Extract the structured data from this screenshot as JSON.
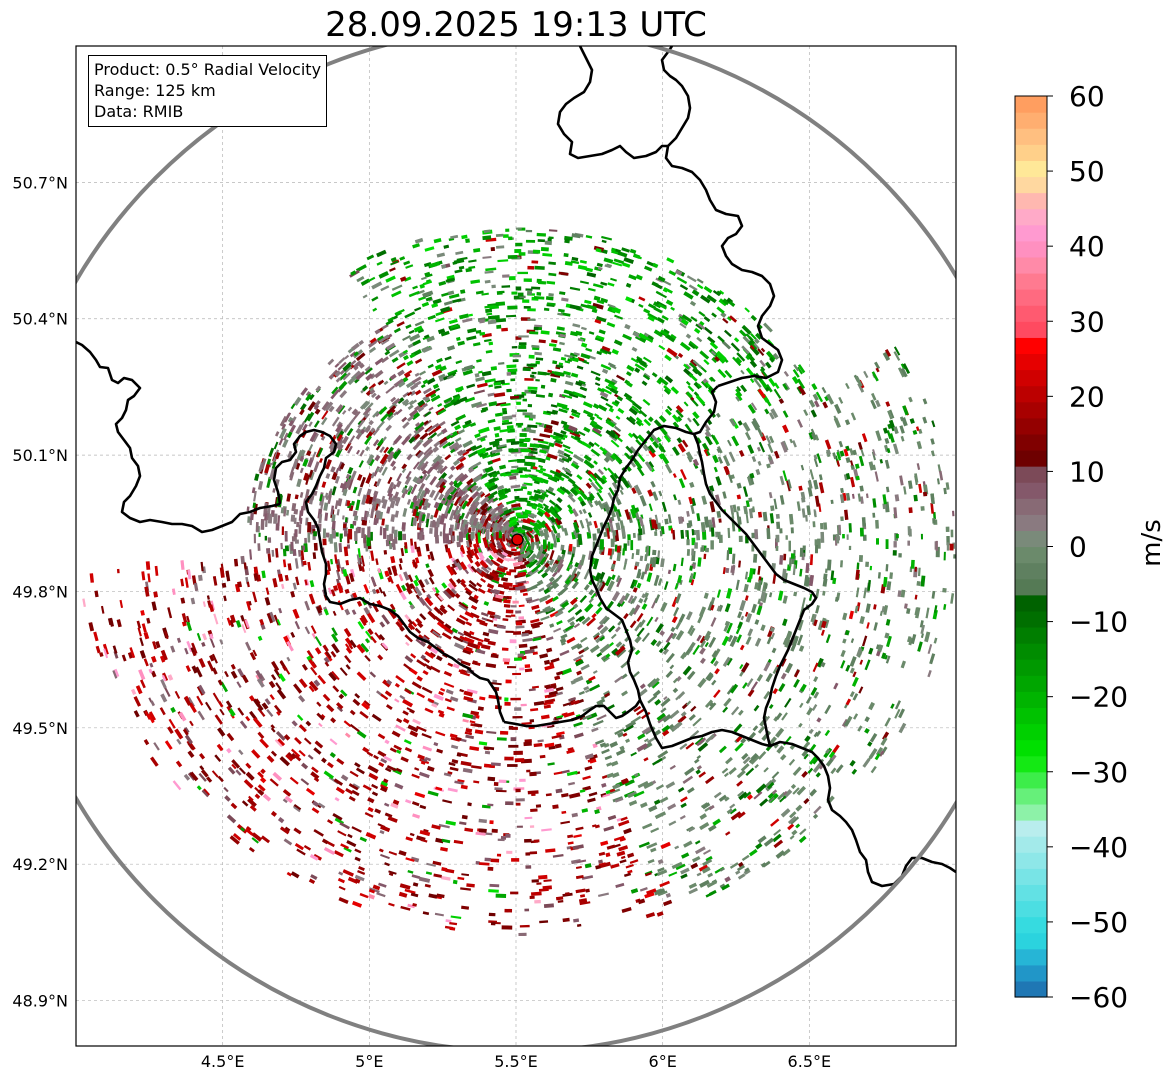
{
  "title": "28.09.2025 19:13 UTC",
  "info": {
    "product": "Product: 0.5° Radial Velocity",
    "range": "Range: 125 km",
    "data": "Data: RMIB"
  },
  "map_extent": {
    "lon": [
      4.0,
      7.0
    ],
    "lat": [
      48.8,
      51.0
    ]
  },
  "radar_site": {
    "lon": 5.505,
    "lat": 49.914,
    "color": "#e00000"
  },
  "range_km": 125,
  "lon_ticks": [
    {
      "value": 4.5,
      "label": "4.5°E"
    },
    {
      "value": 5.0,
      "label": "5°E"
    },
    {
      "value": 5.5,
      "label": "5.5°E"
    },
    {
      "value": 6.0,
      "label": "6°E"
    },
    {
      "value": 6.5,
      "label": "6.5°E"
    }
  ],
  "lat_ticks": [
    {
      "value": 48.9,
      "label": "48.9°N"
    },
    {
      "value": 49.2,
      "label": "49.2°N"
    },
    {
      "value": 49.5,
      "label": "49.5°N"
    },
    {
      "value": 49.8,
      "label": "49.8°N"
    },
    {
      "value": 50.1,
      "label": "50.1°N"
    },
    {
      "value": 50.4,
      "label": "50.4°N"
    },
    {
      "value": 50.7,
      "label": "50.7°N"
    }
  ],
  "colorbar": {
    "label": "m/s",
    "min": -60,
    "max": 60,
    "ticks": [
      {
        "value": 60,
        "label": "60"
      },
      {
        "value": 50,
        "label": "50"
      },
      {
        "value": 40,
        "label": "40"
      },
      {
        "value": 30,
        "label": "30"
      },
      {
        "value": 20,
        "label": "20"
      },
      {
        "value": 10,
        "label": "10"
      },
      {
        "value": 0,
        "label": "0"
      },
      {
        "value": -10,
        "label": "−10"
      },
      {
        "value": -20,
        "label": "−20"
      },
      {
        "value": -30,
        "label": "−30"
      },
      {
        "value": -40,
        "label": "−40"
      },
      {
        "value": -50,
        "label": "−50"
      },
      {
        "value": -60,
        "label": "−60"
      }
    ],
    "colors": [
      "#1f77b4",
      "#2196c8",
      "#26b5d6",
      "#2bd3de",
      "#36dbe0",
      "#4cdee2",
      "#62e1e4",
      "#78e4e6",
      "#8ee7e8",
      "#a3eaea",
      "#b9eded",
      "#8df2a8",
      "#66f07a",
      "#3ded4a",
      "#14e914",
      "#00e000",
      "#00d000",
      "#00c200",
      "#00b400",
      "#00a600",
      "#009900",
      "#008c00",
      "#007e00",
      "#006f00",
      "#006200",
      "#557a55",
      "#5f8060",
      "#6b8a6b",
      "#7a8a7a",
      "#8a7a80",
      "#886a75",
      "#84586a",
      "#7c4a58",
      "#6e0000",
      "#800000",
      "#940000",
      "#a80000",
      "#bc0000",
      "#d00000",
      "#e60000",
      "#ff0000",
      "#ff4a60",
      "#ff5a70",
      "#ff6a80",
      "#ff7a90",
      "#ff8aa8",
      "#ff90c0",
      "#ff9ad0",
      "#ffaac8",
      "#ffb8b0",
      "#ffd8a0",
      "#ffe898",
      "#ffd08a",
      "#ffbf80",
      "#ffae70",
      "#ff9e60"
    ]
  },
  "colors": {
    "range_ring": "#808080",
    "border": "#000000",
    "grid": "#b5b5b5"
  }
}
